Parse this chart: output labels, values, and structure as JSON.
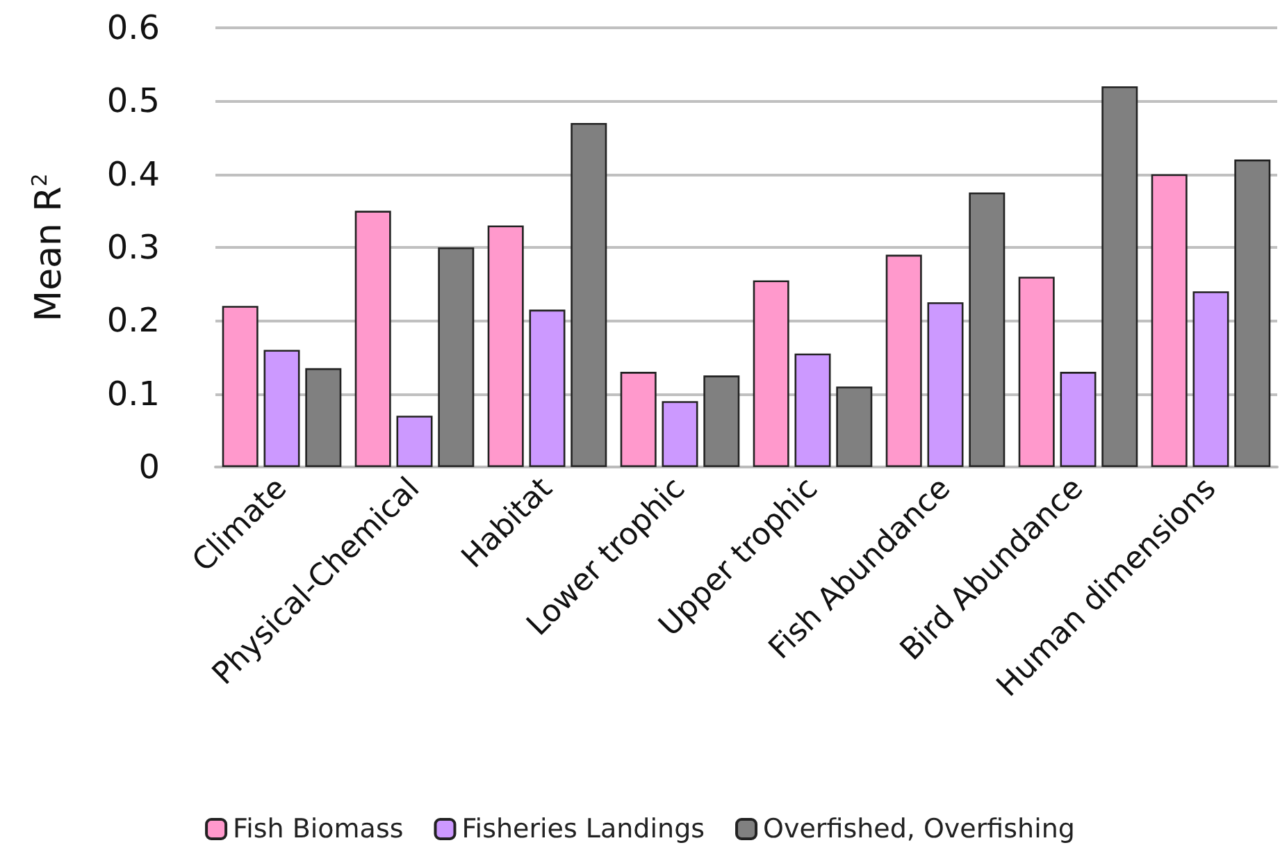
{
  "chart_data": {
    "type": "bar",
    "ylabel": "Mean R$^{2}$",
    "categories": [
      "Climate",
      "Physical-Chemical",
      "Habitat",
      "Lower trophic",
      "Upper trophic",
      "Fish Abundance",
      "Bird Abundance",
      "Human dimensions"
    ],
    "series": [
      {
        "name": "Fish Biomass",
        "color": "#ff99cc",
        "values": [
          0.22,
          0.35,
          0.33,
          0.13,
          0.255,
          0.29,
          0.26,
          0.4
        ]
      },
      {
        "name": "Fisheries Landings",
        "color": "#cc99ff",
        "values": [
          0.16,
          0.07,
          0.215,
          0.09,
          0.155,
          0.225,
          0.13,
          0.24
        ]
      },
      {
        "name": "Overfished, Overfishing",
        "color": "#808080",
        "values": [
          0.135,
          0.3,
          0.47,
          0.125,
          0.11,
          0.375,
          0.52,
          0.42
        ]
      }
    ],
    "ylim": [
      0,
      0.6
    ],
    "yticks": [
      0,
      0.1,
      0.2,
      0.3,
      0.4,
      0.5,
      0.6
    ],
    "grid": "y",
    "legend": "bottom"
  }
}
